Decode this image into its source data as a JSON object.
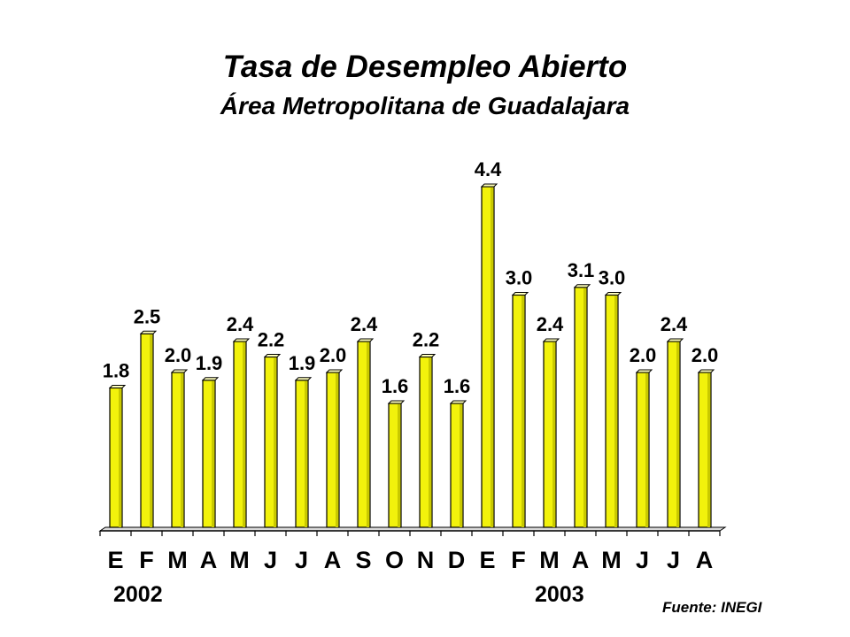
{
  "chart_data": {
    "type": "bar",
    "title": "Tasa de Desempleo Abierto",
    "subtitle": "Área Metropolitana de Guadalajara",
    "categories": [
      "E",
      "F",
      "M",
      "A",
      "M",
      "J",
      "J",
      "A",
      "S",
      "O",
      "N",
      "D",
      "E",
      "F",
      "M",
      "A",
      "M",
      "J",
      "J",
      "A"
    ],
    "values": [
      1.8,
      2.5,
      2.0,
      1.9,
      2.4,
      2.2,
      1.9,
      2.0,
      2.4,
      1.6,
      2.2,
      1.6,
      4.4,
      3.0,
      2.4,
      3.1,
      3.0,
      2.0,
      2.4,
      2.0
    ],
    "value_labels": [
      "1.8",
      "2.5",
      "2.0",
      "1.9",
      "2.4",
      "2.2",
      "1.9",
      "2.0",
      "2.4",
      "1.6",
      "2.2",
      "1.6",
      "4.4",
      "3.0",
      "2.4",
      "3.1",
      "3.0",
      "2.0",
      "2.4",
      "2.0"
    ],
    "year_labels": [
      "2002",
      "2003"
    ],
    "ylim": [
      0,
      4.4
    ],
    "grid": false,
    "legend": "none",
    "bar_color": "#f2f20c",
    "bar_highlight_color": "#ffffb8",
    "bar_edge_color": "#000000",
    "source": "Fuente: INEGI"
  }
}
